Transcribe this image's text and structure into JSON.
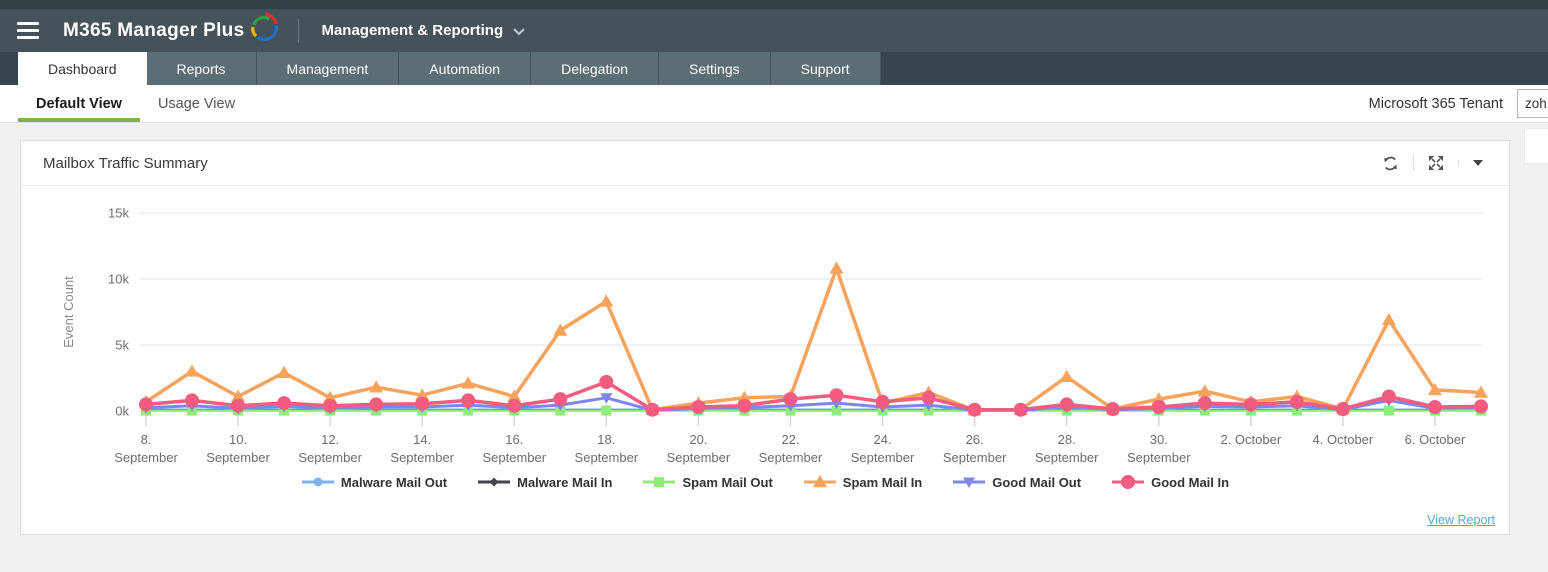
{
  "header": {
    "logo_text": "M365 Manager Plus",
    "module_label": "Management & Reporting",
    "tabs": [
      {
        "label": "Dashboard",
        "active": true
      },
      {
        "label": "Reports",
        "active": false
      },
      {
        "label": "Management",
        "active": false
      },
      {
        "label": "Automation",
        "active": false
      },
      {
        "label": "Delegation",
        "active": false
      },
      {
        "label": "Settings",
        "active": false
      },
      {
        "label": "Support",
        "active": false
      }
    ]
  },
  "subnav": {
    "views": [
      {
        "label": "Default View",
        "active": true
      },
      {
        "label": "Usage View",
        "active": false
      }
    ],
    "tenant_label": "Microsoft 365 Tenant",
    "tenant_value": "zoh",
    "active_underline_color": "#7fb43e"
  },
  "widget": {
    "title": "Mailbox Traffic Summary",
    "toolbar_icons": [
      "refresh-icon",
      "expand-icon",
      "dropdown-caret-icon"
    ],
    "view_report_label": "View Report"
  },
  "chart_data": {
    "type": "line",
    "title": "Mailbox Traffic Summary",
    "xlabel": "",
    "ylabel": "Event Count",
    "ylim": [
      0,
      15000
    ],
    "yticks": [
      {
        "value": 0,
        "label": "0k"
      },
      {
        "value": 5000,
        "label": "5k"
      },
      {
        "value": 10000,
        "label": "10k"
      },
      {
        "value": 15000,
        "label": "15k"
      }
    ],
    "grid": true,
    "legend_position": "bottom",
    "x_unit": "day",
    "x_range": "8. September - 7. October",
    "x_tick_labels": [
      {
        "index": 0,
        "line1": "8.",
        "line2": "September"
      },
      {
        "index": 2,
        "line1": "10.",
        "line2": "September"
      },
      {
        "index": 4,
        "line1": "12.",
        "line2": "September"
      },
      {
        "index": 6,
        "line1": "14.",
        "line2": "September"
      },
      {
        "index": 8,
        "line1": "16.",
        "line2": "September"
      },
      {
        "index": 10,
        "line1": "18.",
        "line2": "September"
      },
      {
        "index": 12,
        "line1": "20.",
        "line2": "September"
      },
      {
        "index": 14,
        "line1": "22.",
        "line2": "September"
      },
      {
        "index": 16,
        "line1": "24.",
        "line2": "September"
      },
      {
        "index": 18,
        "line1": "26.",
        "line2": "September"
      },
      {
        "index": 20,
        "line1": "28.",
        "line2": "September"
      },
      {
        "index": 22,
        "line1": "30.",
        "line2": "September"
      },
      {
        "index": 24,
        "line1": "2. October",
        "line2": ""
      },
      {
        "index": 26,
        "line1": "4. October",
        "line2": ""
      },
      {
        "index": 28,
        "line1": "6. October",
        "line2": ""
      }
    ],
    "series": [
      {
        "name": "Malware Mail Out",
        "color": "#7cb5ec",
        "marker": "circle",
        "line_width": 2.5,
        "marker_size": 4.5,
        "values": [
          100,
          100,
          100,
          100,
          100,
          100,
          100,
          100,
          100,
          100,
          100,
          100,
          100,
          100,
          100,
          100,
          100,
          100,
          100,
          100,
          100,
          100,
          100,
          100,
          100,
          100,
          100,
          100,
          100,
          100
        ]
      },
      {
        "name": "Malware Mail In",
        "color": "#434348",
        "marker": "diamond",
        "line_width": 2.5,
        "marker_size": 4.5,
        "values": [
          50,
          50,
          50,
          50,
          50,
          50,
          50,
          50,
          50,
          50,
          50,
          50,
          50,
          50,
          50,
          50,
          50,
          50,
          50,
          50,
          50,
          50,
          50,
          50,
          50,
          50,
          50,
          50,
          50,
          50
        ]
      },
      {
        "name": "Spam Mail Out",
        "color": "#90ed7d",
        "marker": "square",
        "line_width": 2.5,
        "marker_size": 5,
        "values": [
          30,
          30,
          30,
          30,
          30,
          30,
          30,
          30,
          30,
          30,
          30,
          30,
          30,
          30,
          30,
          30,
          30,
          30,
          30,
          30,
          30,
          30,
          30,
          30,
          30,
          30,
          30,
          30,
          30,
          30
        ]
      },
      {
        "name": "Spam Mail In",
        "color": "#f7a35c",
        "marker": "triangle",
        "line_width": 3.5,
        "marker_size": 7,
        "values": [
          700,
          3000,
          1100,
          2900,
          1000,
          1800,
          1200,
          2100,
          1100,
          6100,
          8300,
          100,
          600,
          1000,
          1100,
          10800,
          600,
          1400,
          50,
          100,
          2600,
          150,
          900,
          1500,
          700,
          1100,
          150,
          6900,
          1600,
          1400
        ]
      },
      {
        "name": "Good Mail Out",
        "color": "#8085e9",
        "marker": "triangle-down",
        "line_width": 3,
        "marker_size": 6,
        "values": [
          250,
          400,
          200,
          350,
          200,
          300,
          300,
          450,
          250,
          450,
          1000,
          50,
          200,
          250,
          400,
          600,
          300,
          450,
          50,
          50,
          300,
          100,
          200,
          350,
          300,
          400,
          100,
          800,
          200,
          250
        ]
      },
      {
        "name": "Good Mail In",
        "color": "#f15c80",
        "marker": "circle",
        "line_width": 3.5,
        "marker_size": 7,
        "values": [
          500,
          800,
          400,
          600,
          400,
          500,
          550,
          800,
          400,
          900,
          2200,
          100,
          300,
          400,
          900,
          1200,
          700,
          1000,
          100,
          100,
          500,
          150,
          300,
          600,
          500,
          700,
          150,
          1100,
          300,
          350
        ]
      }
    ]
  }
}
